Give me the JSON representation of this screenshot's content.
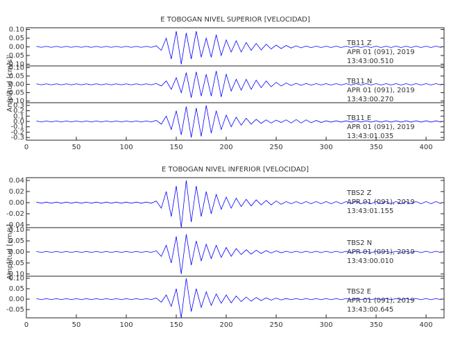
{
  "chart_data": [
    {
      "type": "line",
      "title": "E TOBOGAN NIVEL SUPERIOR [VELOCIDAD]",
      "annotations": [
        "TB11   Z",
        "APR 01 (091), 2019",
        "13:43:00.510"
      ],
      "color": "#0000ff",
      "xlim": [
        0,
        418
      ],
      "ylim": [
        -0.11,
        0.11
      ],
      "yticks": [
        {
          "value": 0.1,
          "label": "0.10"
        },
        0.05,
        {
          "value": 0,
          "label": "0.00"
        },
        -0.05,
        {
          "value": -0.1,
          "label": "-0.10"
        }
      ],
      "x": [
        10,
        15,
        20,
        25,
        30,
        35,
        40,
        45,
        50,
        55,
        60,
        65,
        70,
        75,
        80,
        85,
        90,
        95,
        100,
        105,
        110,
        115,
        120,
        125,
        130,
        135,
        140,
        145,
        150,
        155,
        160,
        165,
        170,
        175,
        180,
        185,
        190,
        195,
        200,
        205,
        210,
        215,
        220,
        225,
        230,
        235,
        240,
        245,
        250,
        255,
        260,
        265,
        270,
        275,
        280,
        285,
        290,
        295,
        300,
        305,
        310,
        315,
        320,
        325,
        330,
        335,
        340,
        345,
        350,
        355,
        360,
        365,
        370,
        375,
        380,
        385,
        390,
        395,
        400,
        405,
        410,
        415
      ],
      "values": [
        0.003,
        -0.003,
        0.003,
        -0.003,
        0.003,
        -0.003,
        0.003,
        -0.003,
        0.003,
        -0.003,
        0.003,
        -0.003,
        0.003,
        -0.003,
        0.003,
        -0.003,
        0.003,
        -0.003,
        0.003,
        -0.003,
        0.003,
        -0.003,
        0.003,
        -0.003,
        0.006,
        -0.02,
        0.05,
        -0.07,
        0.09,
        -0.1,
        0.08,
        -0.07,
        0.09,
        -0.06,
        0.05,
        -0.06,
        0.07,
        -0.05,
        0.04,
        -0.03,
        0.035,
        -0.03,
        0.025,
        -0.02,
        0.02,
        -0.018,
        0.015,
        -0.012,
        0.01,
        -0.01,
        0.008,
        -0.007,
        0.006,
        -0.006,
        0.005,
        -0.005,
        0.004,
        -0.004,
        0.004,
        -0.004,
        0.004,
        -0.004,
        0.004,
        -0.004,
        0.004,
        -0.004,
        0.004,
        -0.004,
        0.004,
        -0.004,
        0.004,
        -0.004,
        0.004,
        -0.004,
        0.004,
        -0.004,
        0.004,
        -0.004,
        0.004,
        -0.004,
        0.004,
        -0.004
      ]
    },
    {
      "type": "line",
      "ylabel": "Amplitud [cm/s]",
      "annotations": [
        "TB11   N",
        "APR 01 (091), 2019",
        "13:43:00.270"
      ],
      "color": "#0000ff",
      "xlim": [
        0,
        418
      ],
      "ylim": [
        -0.11,
        0.11
      ],
      "yticks": [
        {
          "value": 0.1,
          "label": "0.10"
        },
        0.05,
        {
          "value": 0,
          "label": "0.00"
        },
        -0.05,
        {
          "value": -0.1,
          "label": "-0.10"
        }
      ],
      "x": [
        10,
        15,
        20,
        25,
        30,
        35,
        40,
        45,
        50,
        55,
        60,
        65,
        70,
        75,
        80,
        85,
        90,
        95,
        100,
        105,
        110,
        115,
        120,
        125,
        130,
        135,
        140,
        145,
        150,
        155,
        160,
        165,
        170,
        175,
        180,
        185,
        190,
        195,
        200,
        205,
        210,
        215,
        220,
        225,
        230,
        235,
        240,
        245,
        250,
        255,
        260,
        265,
        270,
        275,
        280,
        285,
        290,
        295,
        300,
        305,
        310,
        315,
        320,
        325,
        330,
        335,
        340,
        345,
        350,
        355,
        360,
        365,
        370,
        375,
        380,
        385,
        390,
        395,
        400,
        405,
        410,
        415
      ],
      "values": [
        0.003,
        -0.003,
        0.003,
        -0.003,
        0.003,
        -0.003,
        0.003,
        -0.003,
        0.003,
        -0.003,
        0.003,
        -0.003,
        0.003,
        -0.003,
        0.003,
        -0.003,
        0.003,
        -0.003,
        0.003,
        -0.003,
        0.003,
        -0.003,
        0.003,
        -0.003,
        0.005,
        -0.01,
        0.02,
        -0.03,
        0.04,
        -0.05,
        0.07,
        -0.08,
        0.075,
        -0.07,
        0.06,
        -0.07,
        0.08,
        -0.075,
        0.06,
        -0.04,
        0.03,
        -0.035,
        0.03,
        -0.03,
        0.025,
        -0.02,
        0.02,
        -0.015,
        0.012,
        -0.01,
        0.008,
        -0.007,
        0.006,
        -0.006,
        0.005,
        -0.005,
        0.004,
        -0.004,
        0.004,
        -0.004,
        0.004,
        -0.004,
        0.004,
        -0.004,
        0.004,
        -0.004,
        0.004,
        -0.004,
        0.004,
        -0.004,
        0.004,
        -0.004,
        0.004,
        -0.004,
        0.004,
        -0.004,
        0.004,
        -0.004,
        0.004,
        -0.004,
        0.004,
        -0.004
      ]
    },
    {
      "type": "line",
      "annotations": [
        "TB11   E",
        "APR 01 (091), 2019",
        "13:43:01.035"
      ],
      "color": "#0000ff",
      "xlim": [
        0,
        418
      ],
      "ylim": [
        -0.35,
        0.35
      ],
      "yticks": [
        0.3,
        0.2,
        0.1,
        {
          "value": 0,
          "label": "0.0"
        },
        -0.1,
        -0.2,
        -0.3
      ],
      "xticks": [
        0,
        50,
        100,
        150,
        200,
        250,
        300,
        350,
        400
      ],
      "x": [
        10,
        15,
        20,
        25,
        30,
        35,
        40,
        45,
        50,
        55,
        60,
        65,
        70,
        75,
        80,
        85,
        90,
        95,
        100,
        105,
        110,
        115,
        120,
        125,
        130,
        135,
        140,
        145,
        150,
        155,
        160,
        165,
        170,
        175,
        180,
        185,
        190,
        195,
        200,
        205,
        210,
        215,
        220,
        225,
        230,
        235,
        240,
        245,
        250,
        255,
        260,
        265,
        270,
        275,
        280,
        285,
        290,
        295,
        300,
        305,
        310,
        315,
        320,
        325,
        330,
        335,
        340,
        345,
        350,
        355,
        360,
        365,
        370,
        375,
        380,
        385,
        390,
        395,
        400,
        405,
        410,
        415
      ],
      "values": [
        0.01,
        -0.01,
        0.01,
        -0.01,
        0.01,
        -0.01,
        0.01,
        -0.01,
        0.01,
        -0.01,
        0.01,
        -0.01,
        0.01,
        -0.01,
        0.01,
        -0.01,
        0.01,
        -0.01,
        0.01,
        -0.01,
        0.01,
        -0.01,
        0.01,
        -0.01,
        0.02,
        -0.05,
        0.1,
        -0.15,
        0.2,
        -0.25,
        0.28,
        -0.3,
        0.25,
        -0.28,
        0.3,
        -0.22,
        0.2,
        -0.15,
        0.12,
        -0.1,
        0.08,
        -0.07,
        0.06,
        -0.05,
        0.04,
        -0.035,
        0.03,
        -0.03,
        0.025,
        -0.02,
        0.03,
        -0.03,
        0.035,
        -0.03,
        0.03,
        -0.025,
        0.02,
        -0.02,
        0.012,
        -0.012,
        0.012,
        -0.012,
        0.012,
        -0.012,
        0.012,
        -0.012,
        0.012,
        -0.012,
        0.012,
        -0.012,
        0.012,
        -0.012,
        0.012,
        -0.012,
        0.012,
        -0.012,
        0.012,
        -0.012,
        0.012,
        -0.012,
        0.012,
        -0.012
      ]
    },
    {
      "type": "line",
      "title": "E TOBOGAN NIVEL INFERIOR [VELOCIDAD]",
      "annotations": [
        "TBS2   Z",
        "APR 01 (091), 2019",
        "13:43:01.155"
      ],
      "color": "#0000ff",
      "xlim": [
        0,
        418
      ],
      "ylim": [
        -0.045,
        0.045
      ],
      "yticks": [
        0.04,
        0.02,
        {
          "value": 0,
          "label": "0.00"
        },
        -0.02,
        -0.04
      ],
      "x": [
        10,
        15,
        20,
        25,
        30,
        35,
        40,
        45,
        50,
        55,
        60,
        65,
        70,
        75,
        80,
        85,
        90,
        95,
        100,
        105,
        110,
        115,
        120,
        125,
        130,
        135,
        140,
        145,
        150,
        155,
        160,
        165,
        170,
        175,
        180,
        185,
        190,
        195,
        200,
        205,
        210,
        215,
        220,
        225,
        230,
        235,
        240,
        245,
        250,
        255,
        260,
        265,
        270,
        275,
        280,
        285,
        290,
        295,
        300,
        305,
        310,
        315,
        320,
        325,
        330,
        335,
        340,
        345,
        350,
        355,
        360,
        365,
        370,
        375,
        380,
        385,
        390,
        395,
        400,
        405,
        410,
        415
      ],
      "values": [
        0.001,
        -0.001,
        0.001,
        -0.001,
        0.001,
        -0.001,
        0.001,
        -0.001,
        0.001,
        -0.001,
        0.001,
        -0.001,
        0.001,
        -0.001,
        0.001,
        -0.001,
        0.001,
        -0.001,
        0.001,
        -0.001,
        0.001,
        -0.001,
        0.001,
        -0.001,
        0.003,
        -0.01,
        0.02,
        -0.025,
        0.03,
        -0.045,
        0.04,
        -0.035,
        0.03,
        -0.025,
        0.02,
        -0.02,
        0.015,
        -0.012,
        0.01,
        -0.01,
        0.008,
        -0.007,
        0.006,
        -0.006,
        0.005,
        -0.004,
        0.004,
        -0.004,
        0.003,
        -0.003,
        0.002,
        -0.002,
        0.002,
        -0.002,
        0.002,
        -0.002,
        0.002,
        -0.002,
        0.002,
        -0.002,
        0.002,
        -0.002,
        0.002,
        -0.002,
        0.002,
        -0.002,
        0.002,
        -0.002,
        0.002,
        -0.002,
        0.002,
        -0.002,
        0.002,
        -0.002,
        0.002,
        -0.002,
        0.002,
        -0.002,
        0.002,
        -0.002,
        0.002,
        -0.002
      ]
    },
    {
      "type": "line",
      "ylabel": "Amplitud [cm/s]",
      "annotations": [
        "TBS2   N",
        "APR 01 (091), 2019",
        "13:43:00.010"
      ],
      "color": "#0000ff",
      "xlim": [
        0,
        418
      ],
      "ylim": [
        -0.11,
        0.11
      ],
      "yticks": [
        {
          "value": 0.1,
          "label": "0.10"
        },
        0.05,
        {
          "value": 0,
          "label": "0.00"
        },
        -0.05,
        {
          "value": -0.1,
          "label": "-0.10"
        }
      ],
      "x": [
        10,
        15,
        20,
        25,
        30,
        35,
        40,
        45,
        50,
        55,
        60,
        65,
        70,
        75,
        80,
        85,
        90,
        95,
        100,
        105,
        110,
        115,
        120,
        125,
        130,
        135,
        140,
        145,
        150,
        155,
        160,
        165,
        170,
        175,
        180,
        185,
        190,
        195,
        200,
        205,
        210,
        215,
        220,
        225,
        230,
        235,
        240,
        245,
        250,
        255,
        260,
        265,
        270,
        275,
        280,
        285,
        290,
        295,
        300,
        305,
        310,
        315,
        320,
        325,
        330,
        335,
        340,
        345,
        350,
        355,
        360,
        365,
        370,
        375,
        380,
        385,
        390,
        395,
        400,
        405,
        410,
        415
      ],
      "values": [
        0.002,
        -0.002,
        0.002,
        -0.002,
        0.002,
        -0.002,
        0.002,
        -0.002,
        0.002,
        -0.002,
        0.002,
        -0.002,
        0.002,
        -0.002,
        0.002,
        -0.002,
        0.002,
        -0.002,
        0.002,
        -0.002,
        0.002,
        -0.002,
        0.002,
        -0.002,
        0.005,
        -0.02,
        0.03,
        -0.05,
        0.07,
        -0.1,
        0.08,
        -0.06,
        0.05,
        -0.04,
        0.035,
        -0.03,
        0.03,
        -0.025,
        0.02,
        -0.02,
        0.015,
        -0.012,
        0.01,
        -0.01,
        0.008,
        -0.007,
        0.006,
        -0.005,
        0.005,
        -0.004,
        0.003,
        -0.003,
        0.003,
        -0.003,
        0.003,
        -0.003,
        0.003,
        -0.003,
        0.003,
        -0.003,
        0.003,
        -0.003,
        0.003,
        -0.003,
        0.003,
        -0.003,
        0.003,
        -0.003,
        0.003,
        -0.003,
        0.003,
        -0.003,
        0.003,
        -0.003,
        0.003,
        -0.003,
        0.003,
        -0.003,
        0.003,
        -0.003,
        0.003,
        -0.003
      ]
    },
    {
      "type": "line",
      "annotations": [
        "TBS2   E",
        "APR 01 (091), 2019",
        "13:43:00.645"
      ],
      "color": "#0000ff",
      "xlim": [
        0,
        418
      ],
      "ylim": [
        -0.09,
        0.11
      ],
      "yticks": [
        {
          "value": 0.1,
          "label": "0.10"
        },
        0.05,
        {
          "value": 0,
          "label": "0.00"
        },
        -0.05
      ],
      "xticks": [
        0,
        50,
        100,
        150,
        200,
        250,
        300,
        350,
        400
      ],
      "x": [
        10,
        15,
        20,
        25,
        30,
        35,
        40,
        45,
        50,
        55,
        60,
        65,
        70,
        75,
        80,
        85,
        90,
        95,
        100,
        105,
        110,
        115,
        120,
        125,
        130,
        135,
        140,
        145,
        150,
        155,
        160,
        165,
        170,
        175,
        180,
        185,
        190,
        195,
        200,
        205,
        210,
        215,
        220,
        225,
        230,
        235,
        240,
        245,
        250,
        255,
        260,
        265,
        270,
        275,
        280,
        285,
        290,
        295,
        300,
        305,
        310,
        315,
        320,
        325,
        330,
        335,
        340,
        345,
        350,
        355,
        360,
        365,
        370,
        375,
        380,
        385,
        390,
        395,
        400,
        405,
        410,
        415
      ],
      "values": [
        0.002,
        -0.002,
        0.002,
        -0.002,
        0.002,
        -0.002,
        0.002,
        -0.002,
        0.002,
        -0.002,
        0.002,
        -0.002,
        0.002,
        -0.002,
        0.002,
        -0.002,
        0.002,
        -0.002,
        0.002,
        -0.002,
        0.002,
        -0.002,
        0.002,
        -0.002,
        0.005,
        -0.015,
        0.02,
        -0.035,
        0.05,
        -0.09,
        0.1,
        -0.06,
        0.05,
        -0.04,
        0.035,
        -0.03,
        0.025,
        -0.02,
        0.02,
        -0.018,
        0.015,
        -0.012,
        0.01,
        -0.01,
        0.008,
        -0.007,
        0.006,
        -0.005,
        0.005,
        -0.004,
        0.003,
        -0.003,
        0.003,
        -0.003,
        0.003,
        -0.003,
        0.003,
        -0.003,
        0.003,
        -0.003,
        0.003,
        -0.003,
        0.003,
        -0.003,
        0.003,
        -0.003,
        0.003,
        -0.003,
        0.003,
        -0.003,
        0.003,
        -0.003,
        0.003,
        -0.003,
        0.003,
        -0.003,
        0.003,
        -0.003,
        0.003,
        -0.003,
        0.003,
        -0.003
      ]
    }
  ]
}
